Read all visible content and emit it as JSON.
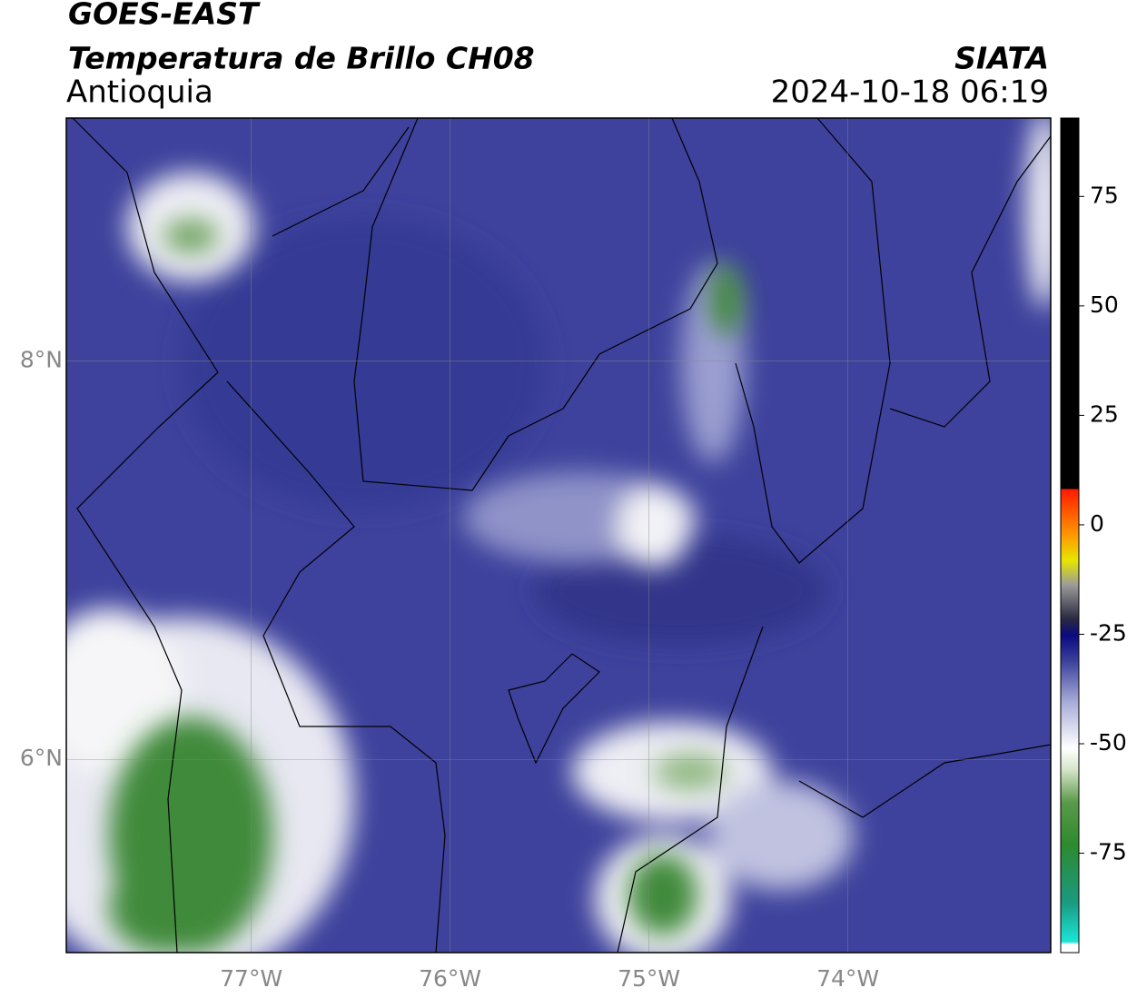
{
  "header": {
    "satellite": "GOES-EAST",
    "product": "Temperatura de Brillo CH08",
    "region": "Antioquia",
    "source": "SIATA",
    "datetime": "2024-10-18 06:19"
  },
  "map": {
    "lonlim": [
      -77.93,
      -72.98
    ],
    "latlim": [
      5.03,
      9.22
    ],
    "lonticks": [
      {
        "value": -77,
        "label": "77°W"
      },
      {
        "value": -76,
        "label": "76°W"
      },
      {
        "value": -75,
        "label": "75°W"
      },
      {
        "value": -74,
        "label": "74°W"
      }
    ],
    "latticks": [
      {
        "value": 8,
        "label": "8°N"
      },
      {
        "value": 6,
        "label": "6°N"
      }
    ]
  },
  "colorbar": {
    "lim": [
      -97.7,
      92.9
    ],
    "ticks": [
      75,
      50,
      25,
      0,
      -25,
      -50,
      -75
    ]
  }
}
